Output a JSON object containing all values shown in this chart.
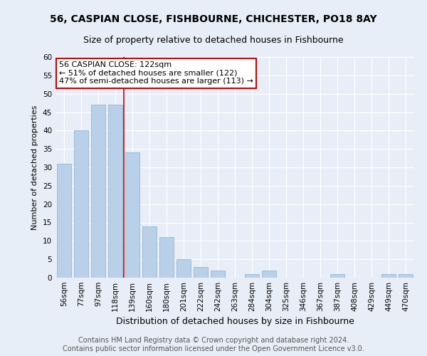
{
  "title": "56, CASPIAN CLOSE, FISHBOURNE, CHICHESTER, PO18 8AY",
  "subtitle": "Size of property relative to detached houses in Fishbourne",
  "xlabel": "Distribution of detached houses by size in Fishbourne",
  "ylabel": "Number of detached properties",
  "categories": [
    "56sqm",
    "77sqm",
    "97sqm",
    "118sqm",
    "139sqm",
    "160sqm",
    "180sqm",
    "201sqm",
    "222sqm",
    "242sqm",
    "263sqm",
    "284sqm",
    "304sqm",
    "325sqm",
    "346sqm",
    "367sqm",
    "387sqm",
    "408sqm",
    "429sqm",
    "449sqm",
    "470sqm"
  ],
  "values": [
    31,
    40,
    47,
    47,
    34,
    14,
    11,
    5,
    3,
    2,
    0,
    1,
    2,
    0,
    0,
    0,
    1,
    0,
    0,
    1,
    1
  ],
  "bar_color": "#b8d0e8",
  "bar_edge_color": "#8ab0d0",
  "vline_index": 3,
  "vline_color": "#cc0000",
  "annotation_line1": "56 CASPIAN CLOSE: 122sqm",
  "annotation_line2": "← 51% of detached houses are smaller (122)",
  "annotation_line3": "47% of semi-detached houses are larger (113) →",
  "annotation_box_facecolor": "#ffffff",
  "annotation_box_edgecolor": "#cc0000",
  "ylim": [
    0,
    60
  ],
  "yticks": [
    0,
    5,
    10,
    15,
    20,
    25,
    30,
    35,
    40,
    45,
    50,
    55,
    60
  ],
  "footer_line1": "Contains HM Land Registry data © Crown copyright and database right 2024.",
  "footer_line2": "Contains public sector information licensed under the Open Government Licence v3.0.",
  "bg_color": "#e8eef8",
  "plot_bg_color": "#e8eef8",
  "grid_color": "#ffffff",
  "title_fontsize": 10,
  "subtitle_fontsize": 9,
  "xlabel_fontsize": 9,
  "ylabel_fontsize": 8,
  "tick_fontsize": 7.5,
  "annotation_fontsize": 8,
  "footer_fontsize": 7
}
